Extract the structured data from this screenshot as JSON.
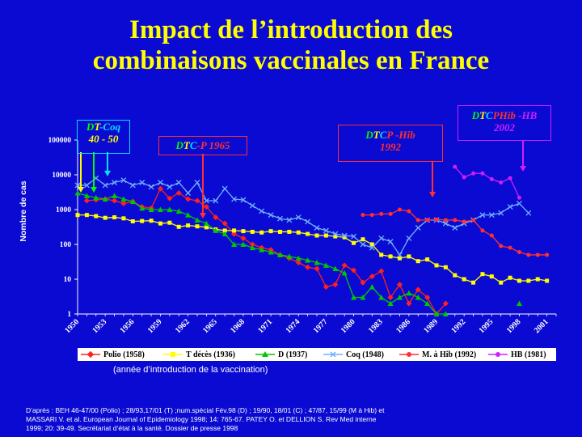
{
  "slide": {
    "title_line1": "Impact de l’introduction des",
    "title_line2": "combinaisons vaccinales en France",
    "note": "(année d’introduction de la vaccination)",
    "source_line1": "D’après : BEH 46-47/00 (Polio) ; 28/93,17/01 (T) ;num.spécial Fév.98 (D) ; 19/90, 18/01 (C) ; 47/87, 15/99 (M à Hib) et",
    "source_line2": "MASSARI V. et al. European Journal of Epidemiology 1998; 14: 765-67.  PATEY O. et DELLION S. Rev Med interne",
    "source_line3": "1999; 20: 39-49. Secrétariat d’état à la santé.  Dossier de presse 1998"
  },
  "annotations": {
    "dtcoq": {
      "p1": "D",
      "p2": "T",
      "p3": "-Coq",
      "years": "40 - 50"
    },
    "dtcp": {
      "p1": "D",
      "p2": "T",
      "p3": "C",
      "p4": "-P 1965"
    },
    "dtcphib": {
      "p1": "D",
      "p2": "T",
      "p3": "C",
      "p4": "P",
      "p5": " -Hib",
      "year": "1992"
    },
    "dtcphibhb": {
      "p1": "D",
      "p2": "T",
      "p3": "C",
      "p4": "P",
      "p5": "Hib",
      "p6": " -HB",
      "year": "2002"
    }
  },
  "colors": {
    "background": "#0a0ad2",
    "polio": "#ff2020",
    "tetanos": "#ffff00",
    "diphterie": "#00c800",
    "coq": "#70b0ff",
    "hib": "#ff3030",
    "hb": "#d020ff",
    "title": "#ffff00"
  },
  "chart_data": {
    "type": "line",
    "title": "Impact de l’introduction des combinaisons vaccinales en France",
    "ylabel": "Nombre de cas",
    "xlabel": "",
    "yscale": "log",
    "ylim": [
      1,
      100000
    ],
    "yticks": [
      "1",
      "10",
      "100",
      "1000",
      "10000",
      "100000"
    ],
    "xlim": [
      1950,
      2002
    ],
    "xticks": [
      "1950",
      "1953",
      "1956",
      "1959",
      "1962",
      "1965",
      "1968",
      "1971",
      "1974",
      "1977",
      "1980",
      "1983",
      "1986",
      "1989",
      "1992",
      "1995",
      "1998",
      "2001"
    ],
    "legend_position": "bottom",
    "series": [
      {
        "name": "Polio (1958)",
        "key": "polio",
        "marker": "diamond",
        "points": [
          [
            1951,
            1800
          ],
          [
            1952,
            1900
          ],
          [
            1953,
            2000
          ],
          [
            1954,
            1800
          ],
          [
            1955,
            1500
          ],
          [
            1956,
            1700
          ],
          [
            1957,
            1200
          ],
          [
            1958,
            1100
          ],
          [
            1959,
            4000
          ],
          [
            1960,
            2100
          ],
          [
            1961,
            3000
          ],
          [
            1962,
            2000
          ],
          [
            1963,
            1800
          ],
          [
            1964,
            1200
          ],
          [
            1965,
            600
          ],
          [
            1966,
            400
          ],
          [
            1967,
            200
          ],
          [
            1968,
            150
          ],
          [
            1969,
            100
          ],
          [
            1970,
            80
          ],
          [
            1971,
            70
          ],
          [
            1972,
            50
          ],
          [
            1973,
            40
          ],
          [
            1974,
            30
          ],
          [
            1975,
            22
          ],
          [
            1976,
            20
          ],
          [
            1977,
            6
          ],
          [
            1978,
            7
          ],
          [
            1979,
            25
          ],
          [
            1980,
            18
          ],
          [
            1981,
            8
          ],
          [
            1982,
            12
          ],
          [
            1983,
            17
          ],
          [
            1984,
            3
          ],
          [
            1985,
            7
          ],
          [
            1986,
            2
          ],
          [
            1987,
            5
          ],
          [
            1988,
            3
          ],
          [
            1989,
            1
          ],
          [
            1990,
            2
          ]
        ]
      },
      {
        "name": "T décès (1936)",
        "key": "tetanos",
        "marker": "square",
        "points": [
          [
            1950,
            700
          ],
          [
            1951,
            700
          ],
          [
            1952,
            650
          ],
          [
            1953,
            580
          ],
          [
            1954,
            600
          ],
          [
            1955,
            560
          ],
          [
            1956,
            460
          ],
          [
            1957,
            470
          ],
          [
            1958,
            480
          ],
          [
            1959,
            400
          ],
          [
            1960,
            420
          ],
          [
            1961,
            320
          ],
          [
            1962,
            350
          ],
          [
            1963,
            330
          ],
          [
            1964,
            310
          ],
          [
            1965,
            270
          ],
          [
            1966,
            250
          ],
          [
            1967,
            250
          ],
          [
            1968,
            240
          ],
          [
            1969,
            230
          ],
          [
            1970,
            220
          ],
          [
            1971,
            240
          ],
          [
            1972,
            230
          ],
          [
            1973,
            230
          ],
          [
            1974,
            220
          ],
          [
            1975,
            200
          ],
          [
            1976,
            180
          ],
          [
            1977,
            180
          ],
          [
            1978,
            170
          ],
          [
            1979,
            160
          ],
          [
            1980,
            110
          ],
          [
            1981,
            140
          ],
          [
            1982,
            100
          ],
          [
            1983,
            50
          ],
          [
            1984,
            45
          ],
          [
            1985,
            40
          ],
          [
            1986,
            45
          ],
          [
            1987,
            33
          ],
          [
            1988,
            37
          ],
          [
            1989,
            25
          ],
          [
            1990,
            22
          ],
          [
            1991,
            13
          ],
          [
            1992,
            10
          ],
          [
            1993,
            8
          ],
          [
            1994,
            14
          ],
          [
            1995,
            12
          ],
          [
            1996,
            8
          ],
          [
            1997,
            11
          ],
          [
            1998,
            9
          ],
          [
            1999,
            9
          ],
          [
            2000,
            10
          ],
          [
            2001,
            9
          ]
        ]
      },
      {
        "name": "D (1937)",
        "key": "diphterie",
        "marker": "triangle",
        "points": [
          [
            1950,
            3000
          ],
          [
            1951,
            2500
          ],
          [
            1952,
            2200
          ],
          [
            1953,
            2000
          ],
          [
            1954,
            2500
          ],
          [
            1955,
            2000
          ],
          [
            1956,
            1700
          ],
          [
            1957,
            1100
          ],
          [
            1958,
            1000
          ],
          [
            1959,
            1000
          ],
          [
            1960,
            1000
          ],
          [
            1961,
            900
          ],
          [
            1962,
            700
          ],
          [
            1963,
            500
          ],
          [
            1964,
            400
          ],
          [
            1965,
            250
          ],
          [
            1966,
            200
          ],
          [
            1967,
            100
          ],
          [
            1968,
            100
          ],
          [
            1969,
            80
          ],
          [
            1970,
            70
          ],
          [
            1971,
            60
          ],
          [
            1972,
            50
          ],
          [
            1973,
            45
          ],
          [
            1974,
            40
          ],
          [
            1975,
            35
          ],
          [
            1976,
            30
          ],
          [
            1977,
            25
          ],
          [
            1978,
            20
          ],
          [
            1979,
            15
          ],
          [
            1980,
            3
          ],
          [
            1981,
            3
          ],
          [
            1982,
            6
          ],
          [
            1983,
            3
          ],
          [
            1984,
            2
          ],
          [
            1985,
            3
          ],
          [
            1986,
            4
          ],
          [
            1987,
            3
          ],
          [
            1988,
            2
          ],
          [
            1989,
            1
          ],
          [
            1990,
            1
          ],
          [
            1998,
            2
          ]
        ]
      },
      {
        "name": "Coq (1948)",
        "key": "coq",
        "marker": "x",
        "points": [
          [
            1950,
            5000
          ],
          [
            1951,
            5000
          ],
          [
            1952,
            8000
          ],
          [
            1953,
            5000
          ],
          [
            1954,
            6000
          ],
          [
            1955,
            7000
          ],
          [
            1956,
            5000
          ],
          [
            1957,
            6000
          ],
          [
            1958,
            4500
          ],
          [
            1959,
            6000
          ],
          [
            1960,
            4500
          ],
          [
            1961,
            6000
          ],
          [
            1962,
            3000
          ],
          [
            1963,
            6000
          ],
          [
            1964,
            1800
          ],
          [
            1965,
            1800
          ],
          [
            1966,
            4000
          ],
          [
            1967,
            2000
          ],
          [
            1968,
            1900
          ],
          [
            1969,
            1300
          ],
          [
            1970,
            900
          ],
          [
            1971,
            700
          ],
          [
            1972,
            550
          ],
          [
            1973,
            500
          ],
          [
            1974,
            600
          ],
          [
            1975,
            450
          ],
          [
            1976,
            300
          ],
          [
            1977,
            250
          ],
          [
            1978,
            200
          ],
          [
            1979,
            180
          ],
          [
            1980,
            170
          ],
          [
            1981,
            100
          ],
          [
            1982,
            80
          ],
          [
            1983,
            150
          ],
          [
            1984,
            120
          ],
          [
            1985,
            50
          ],
          [
            1986,
            150
          ],
          [
            1987,
            300
          ],
          [
            1988,
            500
          ],
          [
            1989,
            500
          ],
          [
            1990,
            400
          ],
          [
            1991,
            300
          ],
          [
            1992,
            400
          ],
          [
            1993,
            500
          ],
          [
            1994,
            700
          ],
          [
            1995,
            700
          ],
          [
            1996,
            800
          ],
          [
            1997,
            1200
          ],
          [
            1998,
            1500
          ],
          [
            1999,
            800
          ]
        ]
      },
      {
        "name": "M. à Hib (1992)",
        "key": "hib",
        "marker": "circle",
        "points": [
          [
            1981,
            700
          ],
          [
            1982,
            700
          ],
          [
            1983,
            750
          ],
          [
            1984,
            750
          ],
          [
            1985,
            1000
          ],
          [
            1986,
            900
          ],
          [
            1987,
            500
          ],
          [
            1988,
            500
          ],
          [
            1989,
            520
          ],
          [
            1990,
            500
          ],
          [
            1991,
            500
          ],
          [
            1992,
            450
          ],
          [
            1993,
            500
          ],
          [
            1994,
            250
          ],
          [
            1995,
            180
          ],
          [
            1996,
            90
          ],
          [
            1997,
            80
          ],
          [
            1998,
            60
          ],
          [
            1999,
            50
          ],
          [
            2000,
            50
          ],
          [
            2001,
            50
          ]
        ]
      },
      {
        "name": "HB (1981)",
        "key": "hb",
        "marker": "circle",
        "points": [
          [
            1991,
            17000
          ],
          [
            1992,
            8500
          ],
          [
            1993,
            11000
          ],
          [
            1994,
            11000
          ],
          [
            1995,
            7500
          ],
          [
            1996,
            6000
          ],
          [
            1997,
            8000
          ],
          [
            1998,
            2200
          ]
        ]
      }
    ]
  }
}
